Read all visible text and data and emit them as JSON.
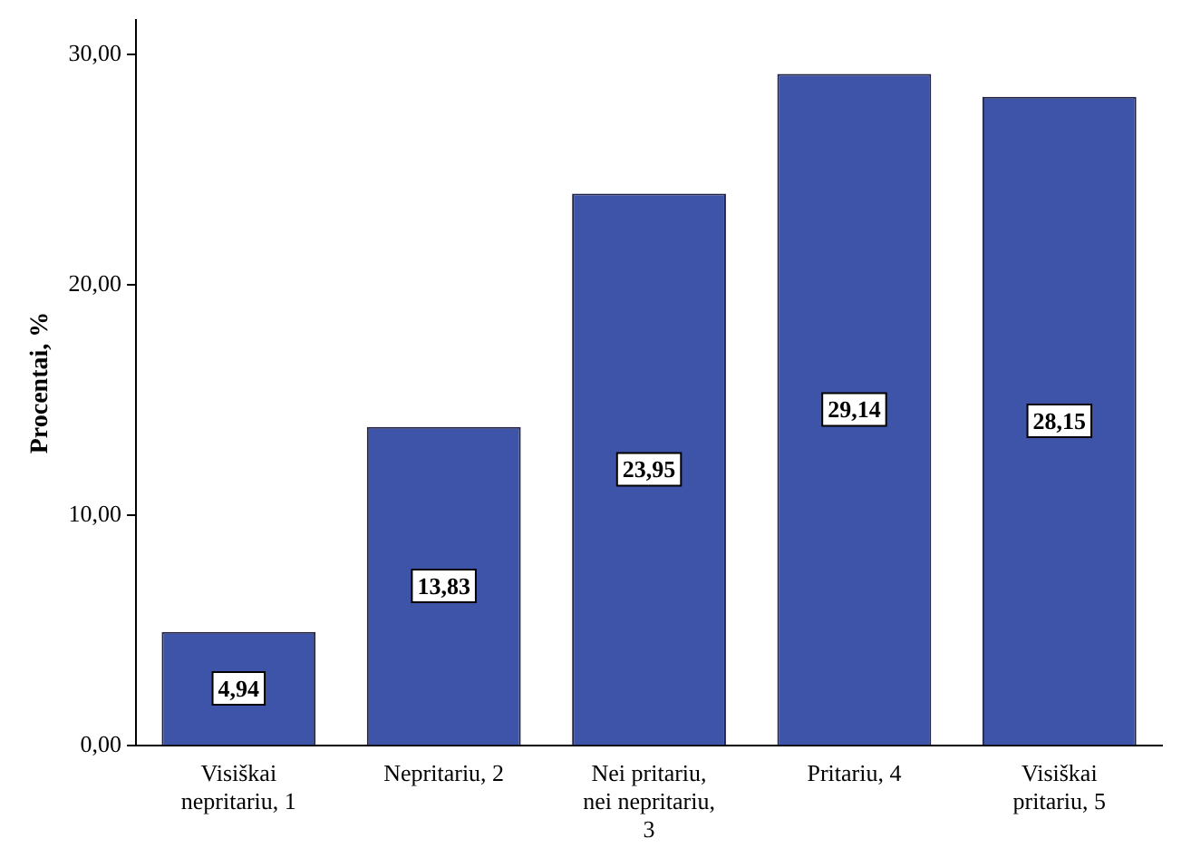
{
  "chart_data": {
    "type": "bar",
    "ylabel": "Procentai, %",
    "categories": [
      "Visiškai nepritariu, 1",
      "Nepritariu, 2",
      "Nei pritariu, nei nepritariu, 3",
      "Pritariu, 4",
      "Visiškai pritariu, 5"
    ],
    "values": [
      4.94,
      13.83,
      23.95,
      29.14,
      28.15
    ],
    "value_labels": [
      "4,94",
      "13,83",
      "23,95",
      "29,14",
      "28,15"
    ],
    "color": "#3e54a8",
    "ylim": [
      0,
      31.5
    ],
    "yticks": [
      {
        "value": 0,
        "label": "0,00"
      },
      {
        "value": 10,
        "label": "10,00"
      },
      {
        "value": 20,
        "label": "20,00"
      },
      {
        "value": 30,
        "label": "30,00"
      }
    ],
    "grid": false,
    "legend": false
  }
}
